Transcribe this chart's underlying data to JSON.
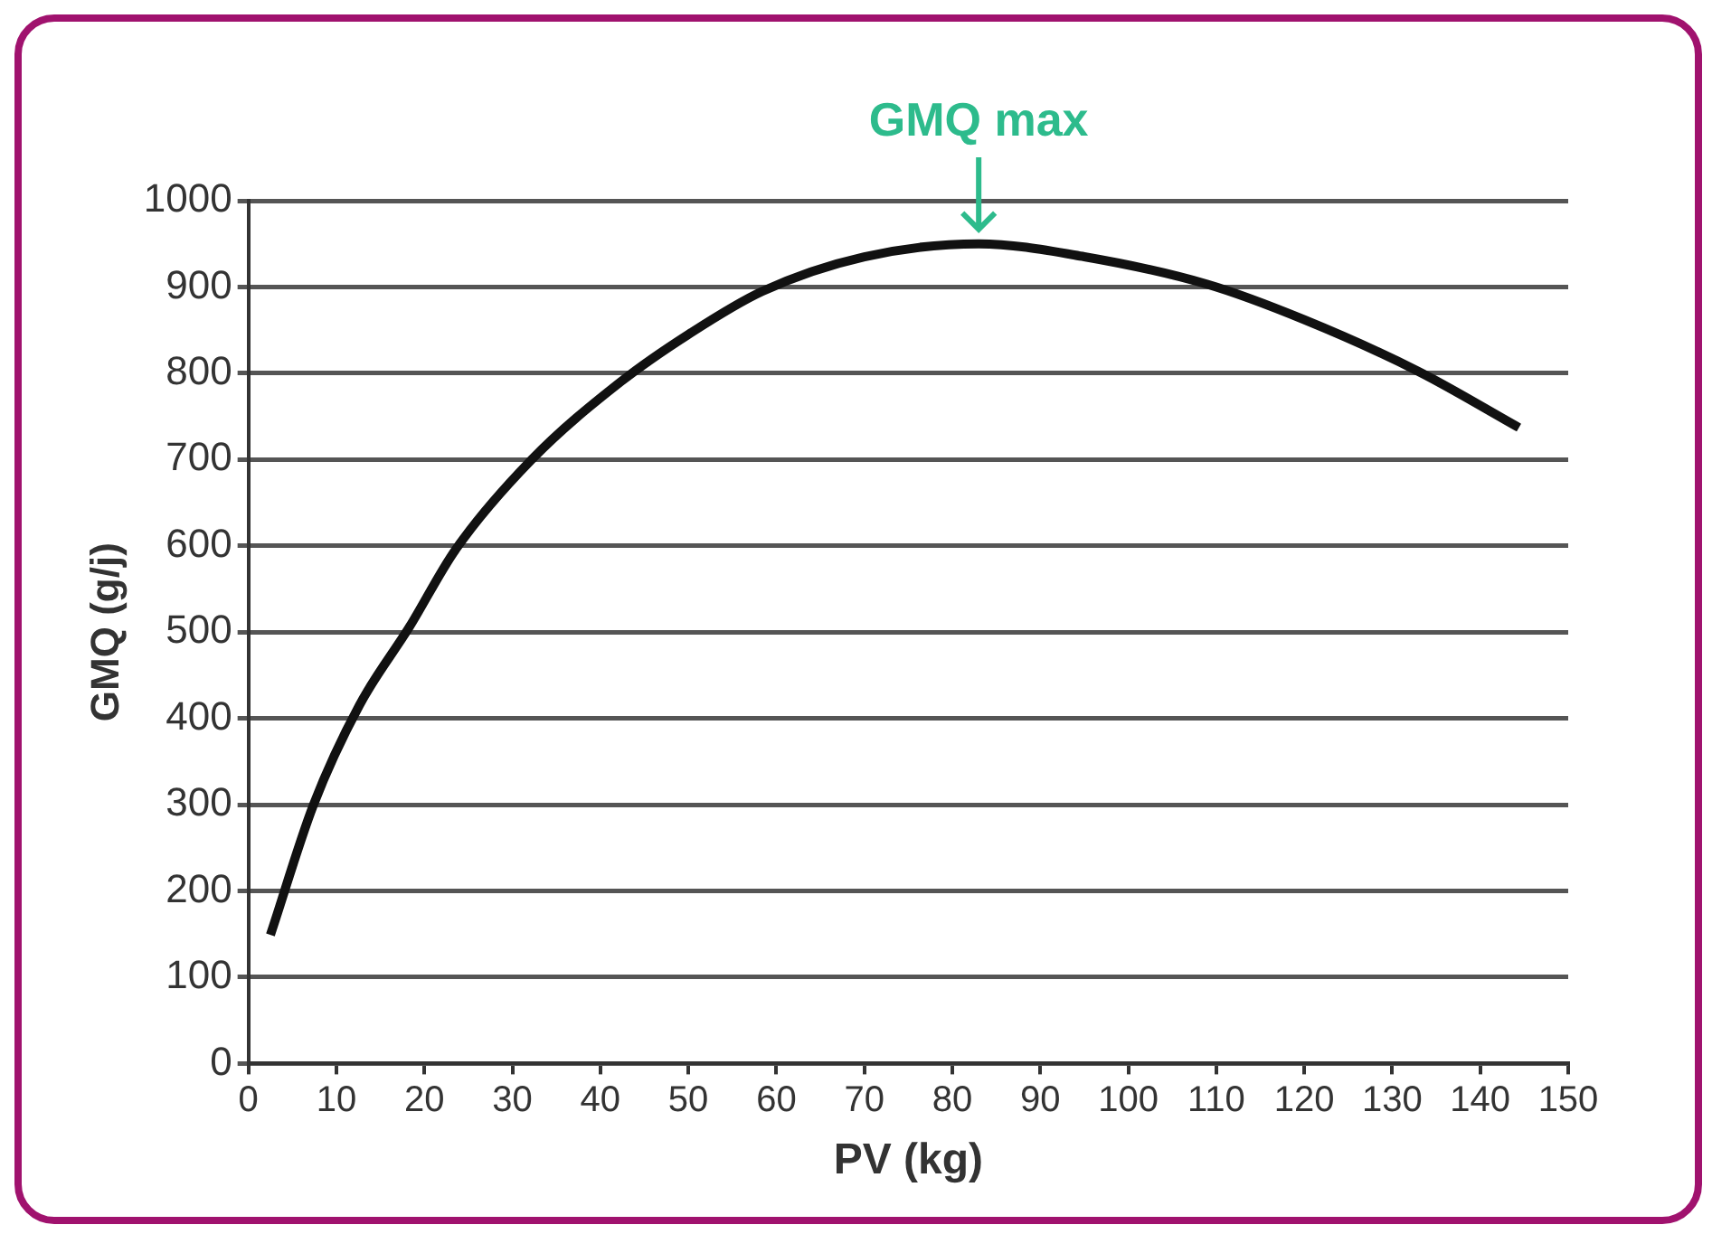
{
  "chart_data": {
    "type": "line",
    "xlabel": "PV (kg)",
    "ylabel": "GMQ (g/j)",
    "annotations": [
      {
        "text": "GMQ max",
        "x": 83,
        "y": 950
      }
    ],
    "series": [
      {
        "color": "#111111",
        "x": [
          2.5,
          7.4,
          12.6,
          18.3,
          23.5,
          32.2,
          42.3,
          50,
          58.4,
          70,
          83,
          95,
          109,
          120,
          133,
          144.4
        ],
        "values": [
          149,
          300,
          415,
          506,
          595,
          700,
          790,
          845,
          895,
          935,
          950,
          935,
          903,
          862,
          802,
          737
        ]
      }
    ],
    "xlim": [
      0,
      150
    ],
    "xticks": [
      0,
      10,
      20,
      30,
      40,
      50,
      60,
      70,
      80,
      90,
      100,
      110,
      120,
      130,
      140,
      150
    ],
    "ylim": [
      0,
      1000
    ],
    "yticks": [
      0,
      100,
      200,
      300,
      400,
      500,
      600,
      700,
      800,
      900,
      1000
    ],
    "grid": "y",
    "legend": false,
    "marker": "none",
    "line_style": "solid"
  }
}
